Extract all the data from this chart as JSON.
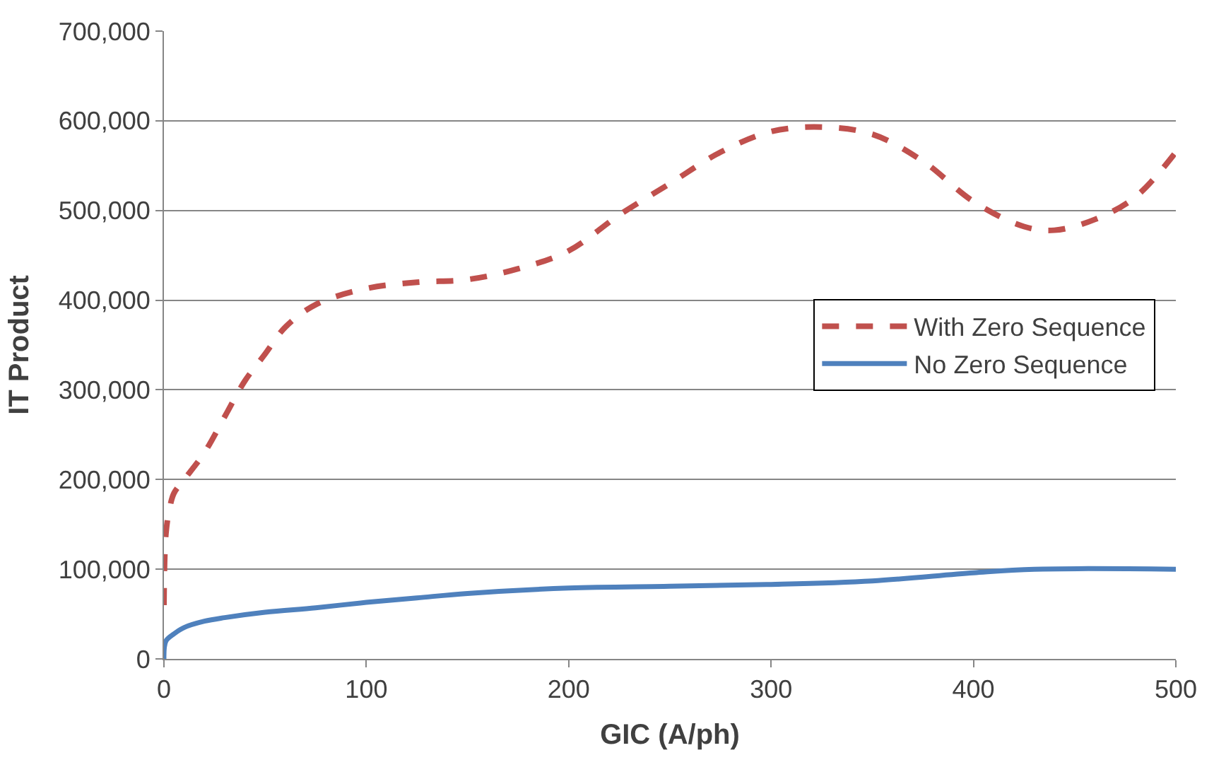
{
  "chart_data": {
    "type": "line",
    "xlabel": "GIC (A/ph)",
    "ylabel": "IT Product",
    "xlim": [
      0,
      500
    ],
    "xticks": [
      0,
      100,
      200,
      300,
      400,
      500
    ],
    "ylim": [
      0,
      700000
    ],
    "yticks": [
      {
        "value": 0,
        "label": "0"
      },
      {
        "value": 100000,
        "label": "100,000"
      },
      {
        "value": 200000,
        "label": "200,000"
      },
      {
        "value": 300000,
        "label": "300,000"
      },
      {
        "value": 400000,
        "label": "400,000"
      },
      {
        "value": 500000,
        "label": "500,000"
      },
      {
        "value": 600000,
        "label": "600,000"
      },
      {
        "value": 700000,
        "label": "700,000"
      }
    ],
    "grid": "y",
    "legend": "right",
    "marker": "none",
    "series": [
      {
        "name": "With Zero Sequence",
        "color": "#c0504d",
        "line_style": "dashed",
        "x": [
          0,
          1,
          3,
          5,
          10,
          20,
          30,
          40,
          50,
          60,
          75,
          100,
          125,
          150,
          175,
          200,
          225,
          250,
          275,
          300,
          325,
          350,
          375,
          400,
          425,
          440,
          460,
          480,
          500
        ],
        "values": [
          60000,
          140000,
          170000,
          185000,
          200000,
          230000,
          270000,
          310000,
          340000,
          370000,
          395000,
          413000,
          420000,
          423000,
          435000,
          455000,
          495000,
          530000,
          565000,
          588000,
          593000,
          585000,
          555000,
          510000,
          482000,
          478000,
          490000,
          515000,
          565000
        ]
      },
      {
        "name": "No Zero Sequence",
        "color": "#4f81bd",
        "line_style": "solid",
        "x": [
          0,
          1,
          5,
          10,
          20,
          30,
          50,
          75,
          100,
          125,
          150,
          200,
          250,
          300,
          350,
          400,
          430,
          500
        ],
        "values": [
          0,
          20000,
          28000,
          35000,
          42000,
          46000,
          52000,
          57000,
          63000,
          68000,
          73000,
          79000,
          81000,
          83000,
          87000,
          96000,
          100000,
          100000
        ]
      }
    ]
  }
}
